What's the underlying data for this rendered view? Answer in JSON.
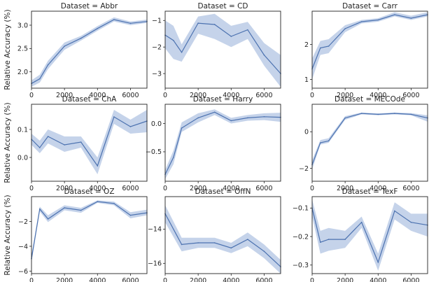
{
  "figure": {
    "ylabel": "Relative Accuracy (%)",
    "xlabel": "No. synthetic samples",
    "line_color": "#4c72b0",
    "band_color": "#c5d3ea"
  },
  "chart_data": [
    {
      "type": "line",
      "title": "Dataset = Abbr",
      "x": [
        0,
        500,
        1000,
        2000,
        3000,
        4000,
        5000,
        6000,
        7000
      ],
      "y": [
        1.75,
        1.85,
        2.15,
        2.55,
        2.72,
        2.93,
        3.12,
        3.04,
        3.08
      ],
      "y_lower": [
        1.68,
        1.77,
        2.06,
        2.47,
        2.67,
        2.88,
        3.08,
        3.0,
        3.05
      ],
      "y_upper": [
        1.82,
        1.94,
        2.24,
        2.63,
        2.77,
        2.98,
        3.17,
        3.08,
        3.12
      ],
      "xlim": [
        0,
        7000
      ],
      "ylim": [
        1.65,
        3.3
      ],
      "xticks": [
        0,
        2000,
        4000,
        6000
      ],
      "yticks": [
        2.0,
        2.5,
        3.0
      ],
      "xtick_labels": [
        "0",
        "2000",
        "4000",
        "6000"
      ],
      "ytick_labels": [
        "2.0",
        "2.5",
        "3.0"
      ]
    },
    {
      "type": "line",
      "title": "Dataset = CD",
      "x": [
        0,
        500,
        1000,
        2000,
        3000,
        4000,
        5000,
        6000,
        7000
      ],
      "y": [
        -1.55,
        -1.75,
        -2.2,
        -1.1,
        -1.15,
        -1.6,
        -1.35,
        -2.3,
        -3.0
      ],
      "y_lower": [
        -2.05,
        -2.45,
        -2.55,
        -1.5,
        -1.7,
        -2.0,
        -1.7,
        -2.7,
        -3.5
      ],
      "y_upper": [
        -1.0,
        -1.2,
        -1.9,
        -0.85,
        -0.75,
        -1.2,
        -1.05,
        -1.85,
        -2.3
      ],
      "xlim": [
        0,
        7000
      ],
      "ylim": [
        -3.55,
        -0.65
      ],
      "xticks": [
        0,
        2000,
        4000,
        6000
      ],
      "yticks": [
        -3,
        -2,
        -1
      ],
      "xtick_labels": [
        "0",
        "2000",
        "4000",
        "6000"
      ],
      "ytick_labels": [
        "−3",
        "−2",
        "−1"
      ]
    },
    {
      "type": "line",
      "title": "Dataset = Carr",
      "x": [
        0,
        500,
        1000,
        2000,
        3000,
        4000,
        5000,
        6000,
        7000
      ],
      "y": [
        1.3,
        1.9,
        1.95,
        2.45,
        2.65,
        2.7,
        2.85,
        2.75,
        2.85
      ],
      "y_lower": [
        1.0,
        1.7,
        1.75,
        2.35,
        2.6,
        2.65,
        2.8,
        2.7,
        2.8
      ],
      "y_upper": [
        1.6,
        2.1,
        2.15,
        2.55,
        2.7,
        2.75,
        2.92,
        2.82,
        2.92
      ],
      "xlim": [
        0,
        7000
      ],
      "ylim": [
        0.75,
        2.95
      ],
      "xticks": [
        0,
        2000,
        4000,
        6000
      ],
      "yticks": [
        1,
        2
      ],
      "xtick_labels": [
        "0",
        "2000",
        "4000",
        "6000"
      ],
      "ytick_labels": [
        "1",
        "2"
      ]
    },
    {
      "type": "line",
      "title": "Dataset = ChA",
      "x": [
        0,
        500,
        1000,
        2000,
        3000,
        4000,
        5000,
        6000,
        7000
      ],
      "y": [
        0.065,
        0.035,
        0.075,
        0.045,
        0.055,
        -0.03,
        0.145,
        0.11,
        0.13
      ],
      "y_lower": [
        0.045,
        0.015,
        0.05,
        0.02,
        0.035,
        -0.06,
        0.12,
        0.085,
        0.09
      ],
      "y_upper": [
        0.085,
        0.06,
        0.1,
        0.075,
        0.075,
        0.0,
        0.17,
        0.135,
        0.17
      ],
      "xlim": [
        0,
        7000
      ],
      "ylim": [
        -0.085,
        0.19
      ],
      "xticks": [
        0,
        2000,
        4000,
        6000
      ],
      "yticks": [
        0.0,
        0.1
      ],
      "xtick_labels": [
        "0",
        "2000",
        "4000",
        "6000"
      ],
      "ytick_labels": [
        "0.0",
        "0.1"
      ]
    },
    {
      "type": "line",
      "title": "Dataset = Harry",
      "x": [
        0,
        500,
        1000,
        2000,
        3000,
        4000,
        5000,
        6000,
        7000
      ],
      "y": [
        -0.9,
        -0.6,
        -0.08,
        0.1,
        0.2,
        0.05,
        0.1,
        0.12,
        0.11
      ],
      "y_lower": [
        -0.98,
        -0.72,
        -0.15,
        0.02,
        0.15,
        0.0,
        0.05,
        0.06,
        0.03
      ],
      "y_upper": [
        -0.82,
        -0.48,
        0.02,
        0.18,
        0.25,
        0.1,
        0.15,
        0.18,
        0.19
      ],
      "xlim": [
        0,
        7000
      ],
      "ylim": [
        -1.02,
        0.34
      ],
      "xticks": [
        0,
        2000,
        4000,
        6000
      ],
      "yticks": [
        -0.5,
        0.0
      ],
      "xtick_labels": [
        "0",
        "2000",
        "4000",
        "6000"
      ],
      "ytick_labels": [
        "−0.5",
        "0.0"
      ]
    },
    {
      "type": "line",
      "title": "Dataset = MECOde",
      "x": [
        0,
        500,
        1000,
        2000,
        3000,
        4000,
        5000,
        6000,
        7000
      ],
      "y": [
        -1.8,
        -0.6,
        -0.5,
        0.75,
        1.0,
        0.95,
        1.0,
        0.95,
        0.75
      ],
      "y_lower": [
        -2.05,
        -0.7,
        -0.6,
        0.65,
        0.95,
        0.9,
        0.95,
        0.9,
        0.55
      ],
      "y_upper": [
        -1.55,
        -0.45,
        -0.35,
        0.85,
        1.05,
        1.0,
        1.05,
        1.02,
        0.9
      ],
      "xlim": [
        0,
        7000
      ],
      "ylim": [
        -2.7,
        1.5
      ],
      "xticks": [
        0,
        2000,
        4000,
        6000
      ],
      "yticks": [
        -2,
        0
      ],
      "xtick_labels": [
        "0",
        "2000",
        "4000",
        "6000"
      ],
      "ytick_labels": [
        "−2",
        "0"
      ]
    },
    {
      "type": "line",
      "title": "Dataset = OZ",
      "x": [
        0,
        500,
        1000,
        2000,
        3000,
        4000,
        5000,
        6000,
        7000
      ],
      "y": [
        -5.0,
        -1.0,
        -1.8,
        -0.9,
        -1.1,
        -0.4,
        -0.55,
        -1.5,
        -1.3
      ],
      "y_lower": [
        -5.3,
        -1.2,
        -2.05,
        -1.1,
        -1.3,
        -0.5,
        -0.7,
        -1.75,
        -1.5
      ],
      "y_upper": [
        -4.7,
        -0.8,
        -1.5,
        -0.7,
        -0.9,
        -0.3,
        -0.4,
        -1.25,
        -1.05
      ],
      "xlim": [
        0,
        7000
      ],
      "ylim": [
        -6.2,
        0.0
      ],
      "xticks": [
        0,
        2000,
        4000,
        6000
      ],
      "yticks": [
        -6,
        -4,
        -2
      ],
      "xtick_labels": [
        "0",
        "2000",
        "4000",
        "6000"
      ],
      "ytick_labels": [
        "−6",
        "−4",
        "−2"
      ]
    },
    {
      "type": "line",
      "title": "Dataset = OffN",
      "x": [
        0,
        1000,
        2000,
        3000,
        4000,
        5000,
        6000,
        7000
      ],
      "y": [
        -13.1,
        -14.9,
        -14.8,
        -14.8,
        -15.1,
        -14.6,
        -15.3,
        -16.2
      ],
      "y_lower": [
        -13.6,
        -15.3,
        -15.1,
        -15.1,
        -15.4,
        -15.0,
        -15.7,
        -16.6
      ],
      "y_upper": [
        -12.6,
        -14.5,
        -14.5,
        -14.5,
        -14.8,
        -14.2,
        -14.9,
        -15.8
      ],
      "xlim": [
        0,
        7000
      ],
      "ylim": [
        -16.6,
        -12.1
      ],
      "xticks": [
        0,
        2000,
        4000,
        6000
      ],
      "yticks": [
        -16,
        -14
      ],
      "xtick_labels": [
        "0",
        "2000",
        "4000",
        "6000"
      ],
      "ytick_labels": [
        "−16",
        "−14"
      ]
    },
    {
      "type": "line",
      "title": "Dataset = TexF",
      "x": [
        0,
        500,
        1000,
        2000,
        3000,
        4000,
        5000,
        6000,
        7000
      ],
      "y": [
        -0.1,
        -0.22,
        -0.21,
        -0.21,
        -0.15,
        -0.29,
        -0.11,
        -0.15,
        -0.16
      ],
      "y_lower": [
        -0.13,
        -0.26,
        -0.25,
        -0.24,
        -0.17,
        -0.32,
        -0.14,
        -0.18,
        -0.2
      ],
      "y_upper": [
        -0.07,
        -0.18,
        -0.17,
        -0.18,
        -0.13,
        -0.26,
        -0.08,
        -0.12,
        -0.12
      ],
      "xlim": [
        0,
        7000
      ],
      "ylim": [
        -0.33,
        -0.06
      ],
      "xticks": [
        0,
        2000,
        4000,
        6000
      ],
      "yticks": [
        -0.3,
        -0.2,
        -0.1
      ],
      "xtick_labels": [
        "0",
        "2000",
        "4000",
        "6000"
      ],
      "ytick_labels": [
        "−0.3",
        "−0.2",
        "−0.1"
      ]
    }
  ]
}
